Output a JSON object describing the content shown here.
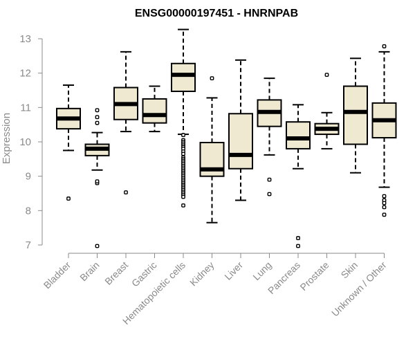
{
  "chart_data": {
    "type": "boxplot",
    "title": "ENSG00000197451 - HNRNPAB",
    "ylabel": "Expression",
    "ylim": [
      6.9,
      13.3
    ],
    "yticks": [
      7,
      8,
      9,
      10,
      11,
      12,
      13
    ],
    "box_fill": "#efe9d2",
    "categories": [
      "Bladder",
      "Brain",
      "Breast",
      "Gastric",
      "Hematopoietic cells",
      "Kidney",
      "Liver",
      "Lung",
      "Pancreas",
      "Prostate",
      "Skin",
      "Unknown / Other"
    ],
    "boxes": [
      {
        "whisker_low": 9.75,
        "q1": 10.38,
        "median": 10.68,
        "q3": 10.97,
        "whisker_high": 11.65,
        "outliers": [
          8.35
        ]
      },
      {
        "whisker_low": 9.18,
        "q1": 9.6,
        "median": 9.8,
        "q3": 9.93,
        "whisker_high": 10.27,
        "outliers": [
          10.55,
          10.72,
          10.92,
          8.8,
          8.85,
          6.97
        ]
      },
      {
        "whisker_low": 10.3,
        "q1": 10.65,
        "median": 11.1,
        "q3": 11.58,
        "whisker_high": 12.62,
        "outliers": [
          8.53
        ]
      },
      {
        "whisker_low": 10.3,
        "q1": 10.55,
        "median": 10.78,
        "q3": 11.25,
        "whisker_high": 11.62,
        "outliers": []
      },
      {
        "whisker_low": 10.22,
        "q1": 11.47,
        "median": 11.95,
        "q3": 12.28,
        "whisker_high": 13.27,
        "outliers": [
          10.2,
          10.05,
          10.0,
          9.95,
          9.9,
          9.85,
          9.8,
          9.72,
          9.65,
          9.55,
          9.5,
          9.45,
          9.4,
          9.35,
          9.3,
          9.25,
          9.2,
          9.15,
          9.1,
          9.05,
          9.0,
          8.95,
          8.9,
          8.85,
          8.8,
          8.75,
          8.7,
          8.65,
          8.6,
          8.55,
          8.5,
          8.45,
          8.4,
          8.15
        ]
      },
      {
        "whisker_low": 7.65,
        "q1": 9.0,
        "median": 9.2,
        "q3": 9.98,
        "whisker_high": 11.28,
        "outliers": [
          11.85
        ]
      },
      {
        "whisker_low": 8.3,
        "q1": 9.22,
        "median": 9.62,
        "q3": 10.82,
        "whisker_high": 12.38,
        "outliers": []
      },
      {
        "whisker_low": 9.62,
        "q1": 10.45,
        "median": 10.87,
        "q3": 11.22,
        "whisker_high": 11.85,
        "outliers": [
          8.9,
          8.48
        ]
      },
      {
        "whisker_low": 9.22,
        "q1": 9.8,
        "median": 10.1,
        "q3": 10.58,
        "whisker_high": 11.08,
        "outliers": [
          7.2,
          6.97
        ]
      },
      {
        "whisker_low": 9.8,
        "q1": 10.22,
        "median": 10.38,
        "q3": 10.53,
        "whisker_high": 10.85,
        "outliers": [
          11.95
        ]
      },
      {
        "whisker_low": 9.1,
        "q1": 9.93,
        "median": 10.87,
        "q3": 11.62,
        "whisker_high": 12.43,
        "outliers": []
      },
      {
        "whisker_low": 8.68,
        "q1": 10.12,
        "median": 10.63,
        "q3": 11.13,
        "whisker_high": 12.62,
        "outliers": [
          12.78,
          8.42,
          8.3,
          8.22,
          8.1,
          7.88
        ]
      }
    ]
  }
}
